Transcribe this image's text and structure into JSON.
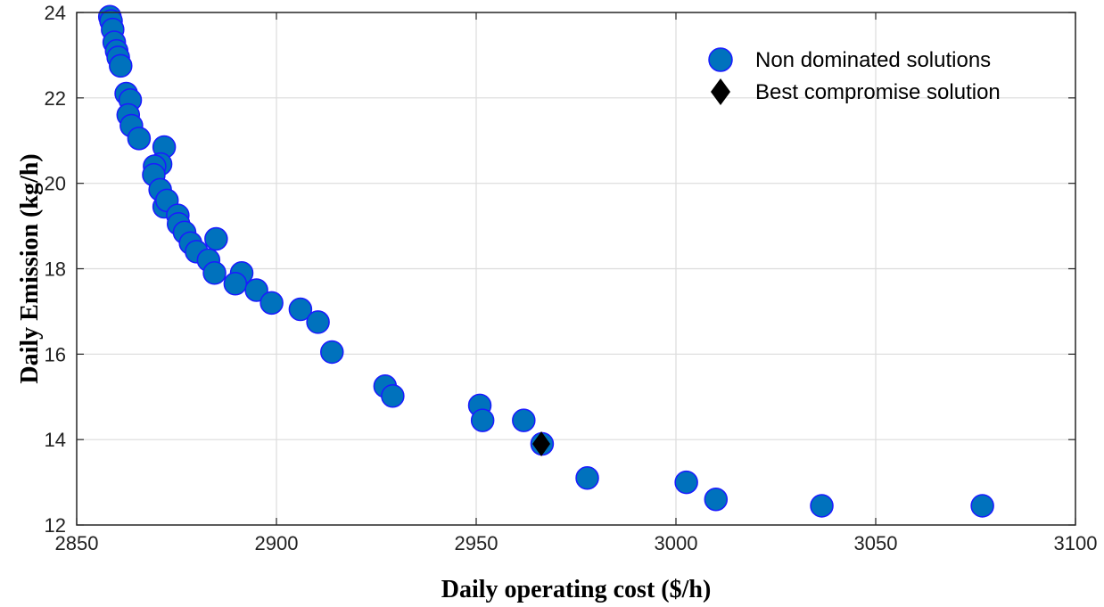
{
  "chart_data": {
    "type": "scatter",
    "xlabel": "Daily operating cost ($/h)",
    "ylabel": "Daily Emission (kg/h)",
    "xlim": [
      2850,
      3100
    ],
    "ylim": [
      12,
      24
    ],
    "xticks": [
      2850,
      2900,
      2950,
      3000,
      3050,
      3100
    ],
    "yticks": [
      12,
      14,
      16,
      18,
      20,
      22,
      24
    ],
    "grid": true,
    "legend_position": "top-right",
    "colors": {
      "marker_fill": "#0072bd",
      "marker_edge": "#1a1aff",
      "best_marker": "#000000",
      "grid": "#dcdcdc"
    },
    "series": [
      {
        "name": "Non dominated solutions",
        "marker": "circle",
        "points": [
          [
            2858.3,
            23.9
          ],
          [
            2858.6,
            23.8
          ],
          [
            2859.0,
            23.6
          ],
          [
            2859.4,
            23.3
          ],
          [
            2860.0,
            23.1
          ],
          [
            2860.4,
            22.95
          ],
          [
            2861.0,
            22.75
          ],
          [
            2862.4,
            22.1
          ],
          [
            2863.4,
            21.95
          ],
          [
            2862.9,
            21.6
          ],
          [
            2863.7,
            21.35
          ],
          [
            2865.6,
            21.05
          ],
          [
            2871.9,
            20.85
          ],
          [
            2871.0,
            20.45
          ],
          [
            2869.5,
            20.4
          ],
          [
            2869.3,
            20.2
          ],
          [
            2870.9,
            19.85
          ],
          [
            2871.9,
            19.45
          ],
          [
            2872.6,
            19.6
          ],
          [
            2875.3,
            19.25
          ],
          [
            2875.5,
            19.05
          ],
          [
            2877.0,
            18.85
          ],
          [
            2878.5,
            18.6
          ],
          [
            2880.0,
            18.4
          ],
          [
            2884.9,
            18.7
          ],
          [
            2883.0,
            18.2
          ],
          [
            2884.5,
            17.9
          ],
          [
            2891.3,
            17.9
          ],
          [
            2889.7,
            17.65
          ],
          [
            2895.0,
            17.5
          ],
          [
            2898.8,
            17.2
          ],
          [
            2906.0,
            17.05
          ],
          [
            2910.4,
            16.75
          ],
          [
            2913.9,
            16.05
          ],
          [
            2927.2,
            15.25
          ],
          [
            2929.1,
            15.02
          ],
          [
            2950.9,
            14.8
          ],
          [
            2951.6,
            14.45
          ],
          [
            2961.9,
            14.45
          ],
          [
            2966.5,
            13.9
          ],
          [
            2977.8,
            13.1
          ],
          [
            3002.6,
            13.0
          ],
          [
            3010.0,
            12.6
          ],
          [
            3036.5,
            12.45
          ],
          [
            3076.7,
            12.45
          ]
        ]
      },
      {
        "name": "Best compromise solution",
        "marker": "diamond",
        "points": [
          [
            2966.3,
            13.9
          ]
        ]
      }
    ]
  }
}
